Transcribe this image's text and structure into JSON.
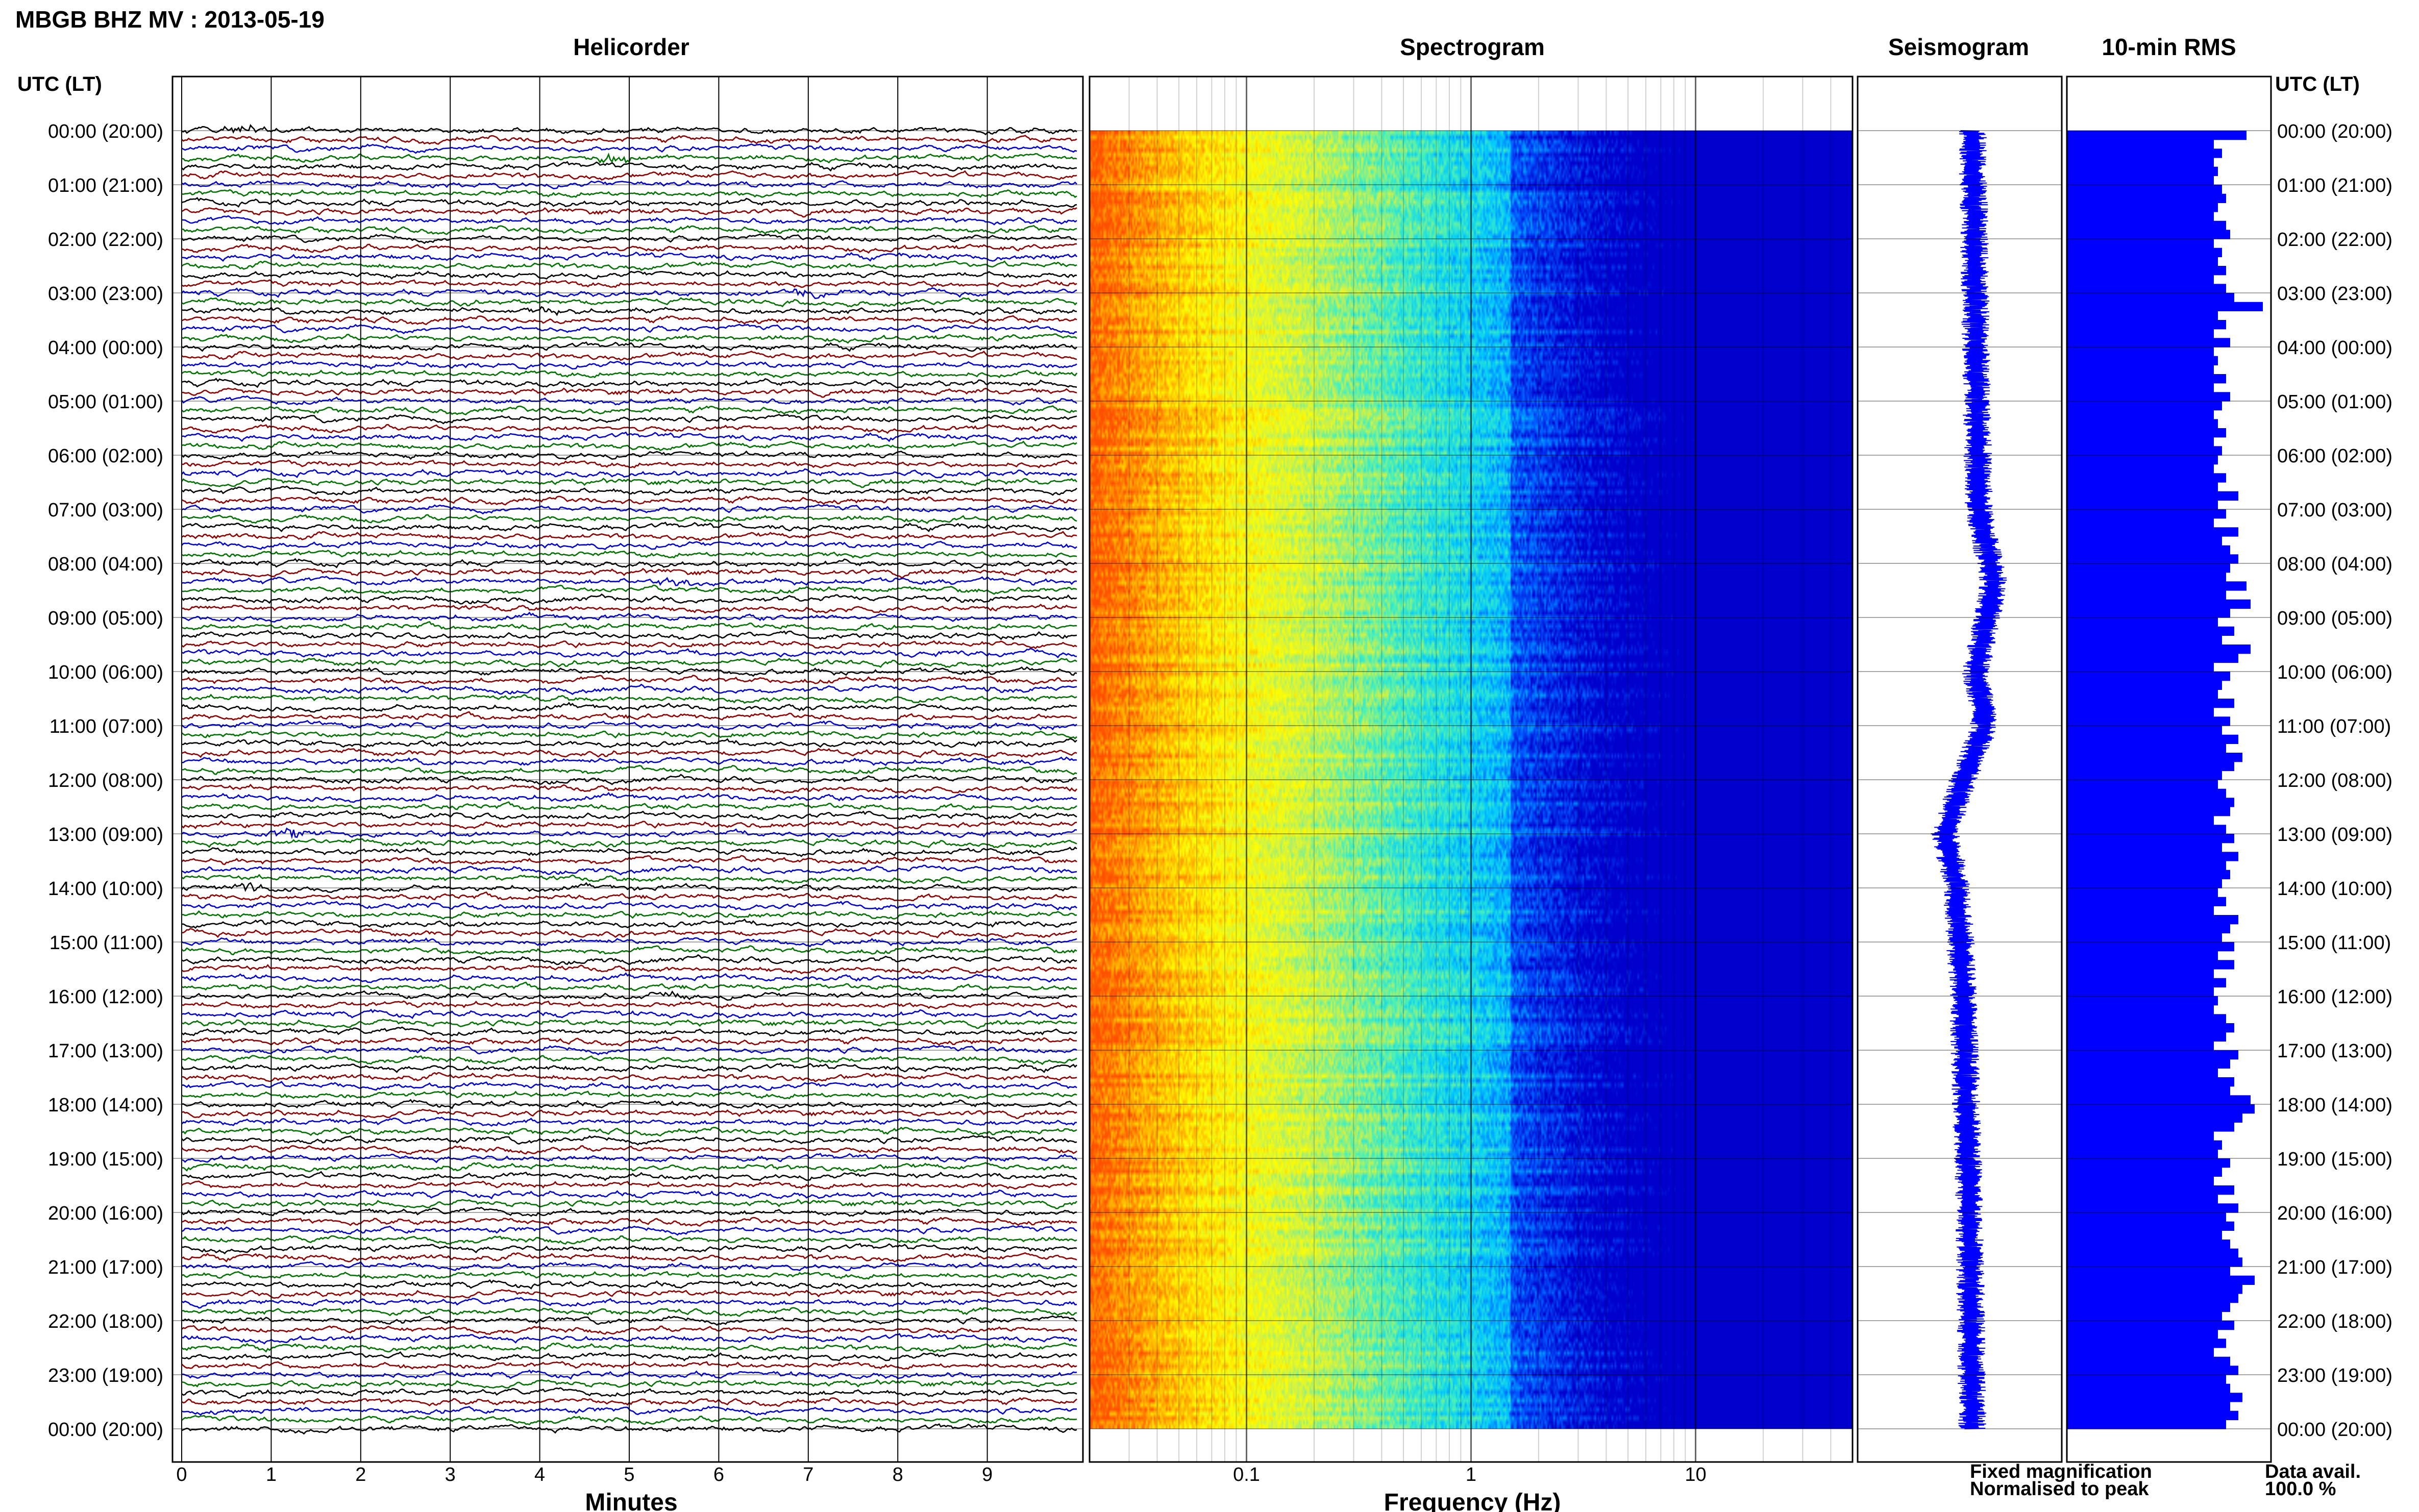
{
  "title": "MBGB BHZ MV : 2013-05-19",
  "panels": {
    "helicorder": "Helicorder",
    "spectrogram": "Spectrogram",
    "seismogram": "Seismogram",
    "rms": "10-min RMS"
  },
  "time_axis_label": "UTC (LT)",
  "time_labels": [
    "00:00 (20:00)",
    "01:00 (21:00)",
    "02:00 (22:00)",
    "03:00 (23:00)",
    "04:00 (00:00)",
    "05:00 (01:00)",
    "06:00 (02:00)",
    "07:00 (03:00)",
    "08:00 (04:00)",
    "09:00 (05:00)",
    "10:00 (06:00)",
    "11:00 (07:00)",
    "12:00 (08:00)",
    "13:00 (09:00)",
    "14:00 (10:00)",
    "15:00 (11:00)",
    "16:00 (12:00)",
    "17:00 (13:00)",
    "18:00 (14:00)",
    "19:00 (15:00)",
    "20:00 (16:00)",
    "21:00 (17:00)",
    "22:00 (18:00)",
    "23:00 (19:00)",
    "00:00 (20:00)"
  ],
  "helicorder_xlabel": "Minutes",
  "helicorder_ticks": [
    "0",
    "1",
    "2",
    "3",
    "4",
    "5",
    "6",
    "7",
    "8",
    "9"
  ],
  "spectrogram_xlabel": "Frequency (Hz)",
  "spectrogram_ticks": [
    "0.1",
    "1",
    "10"
  ],
  "legend": {
    "fixed": "Fixed magnification",
    "normalised": "Normalised to peak",
    "fixed_color": "#0000ff",
    "normalised_color": "#ff0000"
  },
  "data_avail_label": "Data avail.",
  "data_avail_value": "100.0 %",
  "trace_colors": [
    "#000000",
    "#8b0000",
    "#0000cc",
    "#007000"
  ],
  "chart_data": [
    {
      "type": "line",
      "panel": "Helicorder",
      "xlabel": "Minutes",
      "ylabel": "UTC (LT)",
      "xlim": [
        0,
        10
      ],
      "lines_per_hour": 6,
      "lines_total": 144,
      "events": [
        {
          "time": "00:00",
          "minute": 0.7
        },
        {
          "time": "00:30",
          "minute": 4.8
        },
        {
          "time": "03:00",
          "minute": 7.0
        },
        {
          "time": "03:20",
          "minute": 4.0
        },
        {
          "time": "08:20",
          "minute": 5.5
        },
        {
          "time": "13:00",
          "minute": 1.2
        },
        {
          "time": "14:00",
          "minute": 0.7
        },
        {
          "time": "16:00",
          "minute": 5.5
        }
      ]
    },
    {
      "type": "heatmap",
      "panel": "Spectrogram",
      "xlabel": "Frequency (Hz)",
      "x_scale": "log",
      "xlim": [
        0.02,
        50
      ],
      "colormap": [
        "#0000cc",
        "#0055ff",
        "#00c8ff",
        "#40f0c0",
        "#c8f050",
        "#ffff00",
        "#ffb000",
        "#ff5000"
      ],
      "dominant_band_hz": [
        0.02,
        0.06
      ]
    },
    {
      "type": "line",
      "panel": "Seismogram",
      "note_points": [
        {
          "time": "00:00",
          "amp": 0.0
        },
        {
          "time": "07:00",
          "amp": 0.1
        },
        {
          "time": "08:20",
          "amp": 0.35
        },
        {
          "time": "09:00",
          "amp": 0.25
        },
        {
          "time": "10:00",
          "amp": 0.05
        },
        {
          "time": "11:00",
          "amp": 0.2
        },
        {
          "time": "12:00",
          "amp": -0.15
        },
        {
          "time": "13:00",
          "amp": -0.45
        },
        {
          "time": "14:00",
          "amp": -0.25
        },
        {
          "time": "16:00",
          "amp": -0.15
        },
        {
          "time": "18:00",
          "amp": -0.1
        },
        {
          "time": "20:00",
          "amp": -0.05
        },
        {
          "time": "24:00",
          "amp": 0.0
        }
      ]
    },
    {
      "type": "bar",
      "panel": "10-min RMS",
      "orientation": "horizontal",
      "values": [
        0.88,
        0.72,
        0.76,
        0.72,
        0.74,
        0.72,
        0.76,
        0.78,
        0.74,
        0.72,
        0.78,
        0.8,
        0.72,
        0.76,
        0.74,
        0.78,
        0.72,
        0.78,
        0.82,
        0.96,
        0.74,
        0.78,
        0.72,
        0.8,
        0.72,
        0.74,
        0.72,
        0.78,
        0.72,
        0.8,
        0.76,
        0.72,
        0.74,
        0.78,
        0.72,
        0.76,
        0.74,
        0.72,
        0.78,
        0.74,
        0.84,
        0.74,
        0.78,
        0.72,
        0.84,
        0.76,
        0.8,
        0.84,
        0.8,
        0.78,
        0.88,
        0.78,
        0.9,
        0.8,
        0.74,
        0.82,
        0.76,
        0.9,
        0.84,
        0.72,
        0.8,
        0.76,
        0.74,
        0.82,
        0.72,
        0.8,
        0.76,
        0.84,
        0.78,
        0.86,
        0.82,
        0.76,
        0.74,
        0.78,
        0.82,
        0.8,
        0.72,
        0.78,
        0.82,
        0.76,
        0.84,
        0.78,
        0.8,
        0.76,
        0.74,
        0.78,
        0.72,
        0.84,
        0.8,
        0.76,
        0.82,
        0.74,
        0.82,
        0.72,
        0.78,
        0.72,
        0.74,
        0.72,
        0.78,
        0.82,
        0.78,
        0.72,
        0.84,
        0.8,
        0.74,
        0.82,
        0.8,
        0.9,
        0.92,
        0.86,
        0.82,
        0.72,
        0.76,
        0.74,
        0.8,
        0.76,
        0.72,
        0.82,
        0.74,
        0.84,
        0.78,
        0.82,
        0.76,
        0.8,
        0.84,
        0.86,
        0.8,
        0.92,
        0.86,
        0.84,
        0.8,
        0.76,
        0.82,
        0.74,
        0.78,
        0.72,
        0.8,
        0.84,
        0.78,
        0.8,
        0.86,
        0.8,
        0.84,
        0.78
      ],
      "xlim": [
        0,
        1
      ]
    }
  ]
}
